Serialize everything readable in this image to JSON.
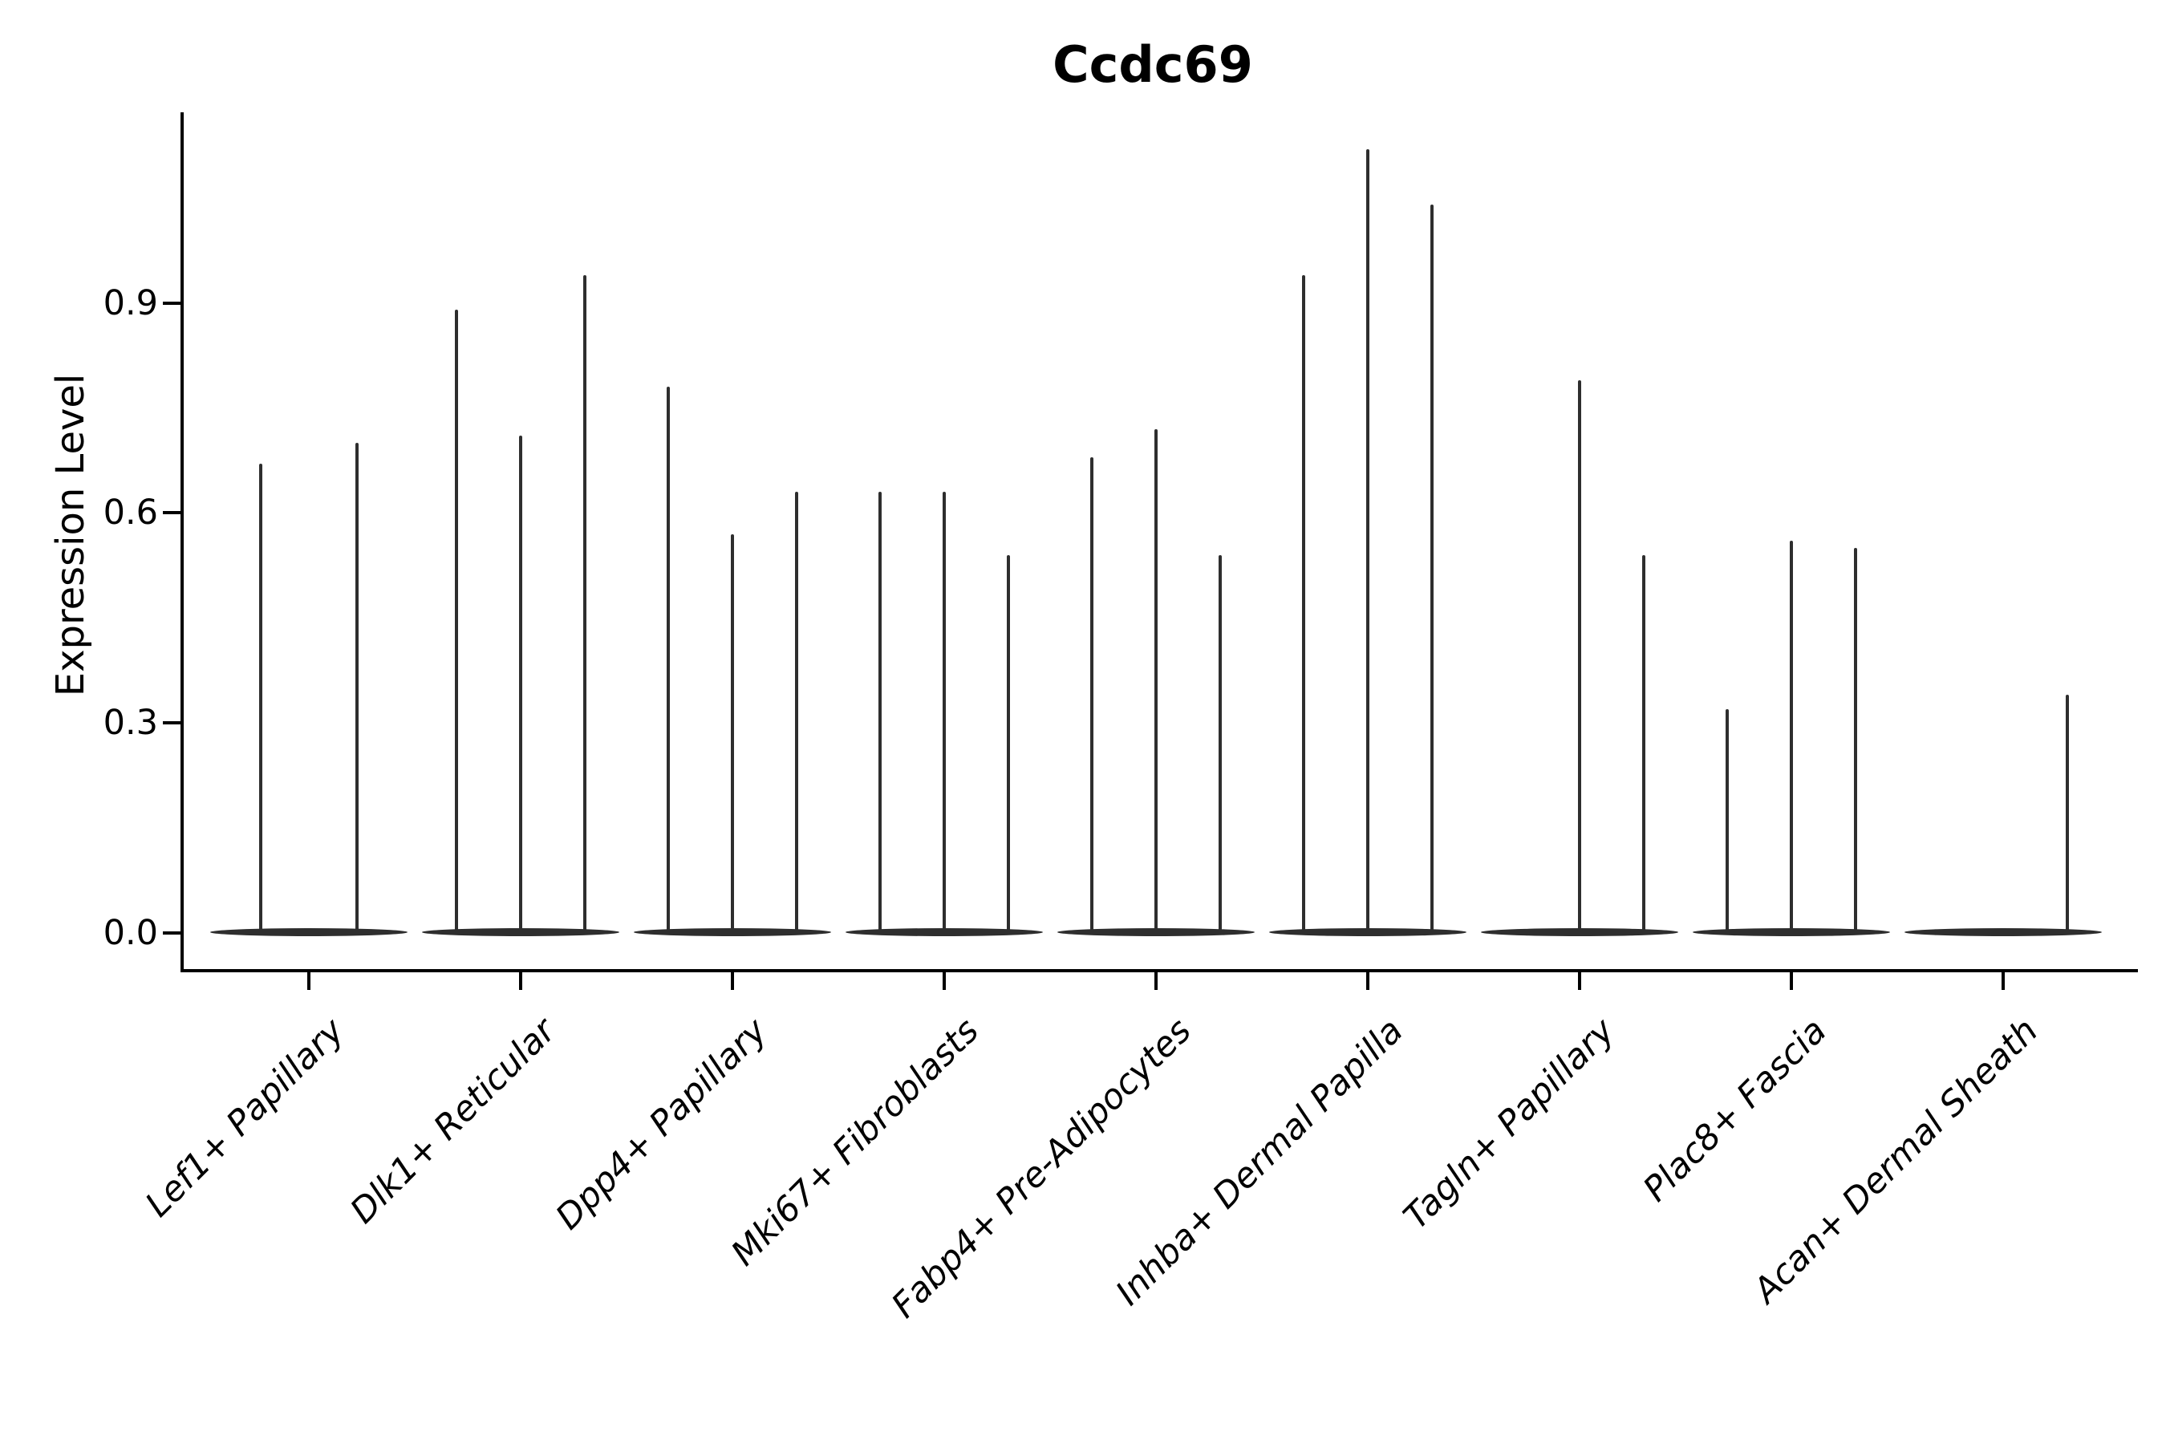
{
  "chart_data": {
    "type": "violin",
    "title": "Ccdc69",
    "ylabel": "Expression Level",
    "xlabel": "",
    "yticks": [
      0.0,
      0.3,
      0.6,
      0.9
    ],
    "ylim": [
      0,
      1.17
    ],
    "grid": false,
    "legend": "none",
    "description": "Split violin plot; expression is concentrated at 0 (flattened violin bases) with thin density spikes reaching each group's maximum expression value.",
    "categories": [
      "Lef1+ Papillary",
      "Dlk1+ Reticular",
      "Dpp4+ Papillary",
      "Mki67+ Fibroblasts",
      "Fabp4+ Pre-Adipocytes",
      "Inhba+ Dermal Papilla",
      "Tagln+ Papillary",
      "Plac8+ Fascia",
      "Acan+ Dermal Sheath"
    ],
    "groups": [
      {
        "category": "Lef1+ Papillary",
        "violin_max_values": [
          0.67,
          0.7
        ]
      },
      {
        "category": "Dlk1+ Reticular",
        "violin_max_values": [
          0.89,
          0.71,
          0.94
        ]
      },
      {
        "category": "Dpp4+ Papillary",
        "violin_max_values": [
          0.78,
          0.57,
          0.63
        ]
      },
      {
        "category": "Mki67+ Fibroblasts",
        "violin_max_values": [
          0.63,
          0.63,
          0.54
        ]
      },
      {
        "category": "Fabp4+ Pre-Adipocytes",
        "violin_max_values": [
          0.68,
          0.72,
          0.54
        ]
      },
      {
        "category": "Inhba+ Dermal Papilla",
        "violin_max_values": [
          0.94,
          1.12,
          1.04
        ]
      },
      {
        "category": "Tagln+ Papillary",
        "violin_max_values": [
          0.0,
          0.79,
          0.54
        ]
      },
      {
        "category": "Plac8+ Fascia",
        "violin_max_values": [
          0.32,
          0.56,
          0.55
        ]
      },
      {
        "category": "Acan+ Dermal Sheath",
        "violin_max_values": [
          0.0,
          0.0,
          0.34
        ]
      }
    ],
    "colors": {
      "violin_stroke": "#2e2e2e",
      "axis": "#000000",
      "background": "#ffffff"
    }
  }
}
